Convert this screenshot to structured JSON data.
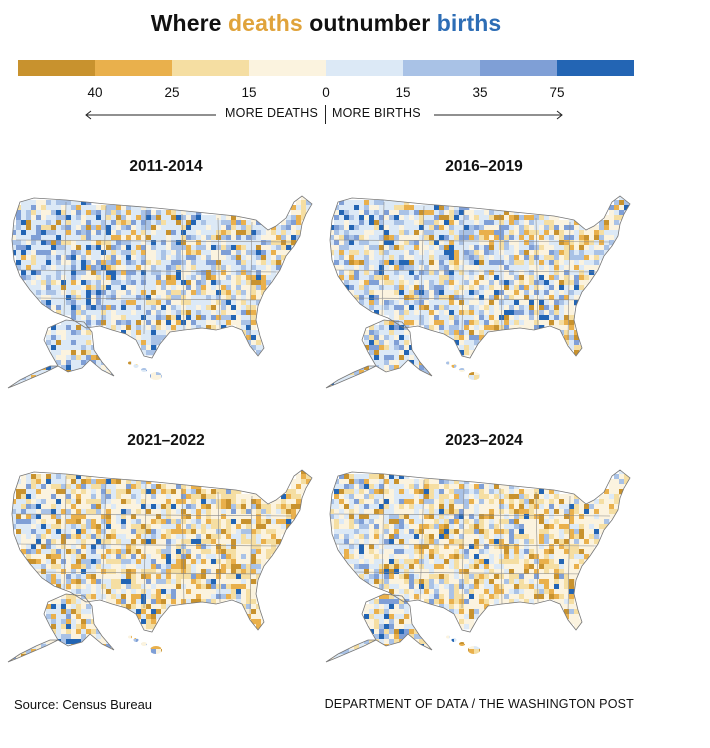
{
  "title": {
    "prefix": "Where ",
    "deaths_word": "deaths",
    "middle": " outnumber ",
    "births_word": "births"
  },
  "colors": {
    "deaths_accent": "#e0a33b",
    "births_accent": "#2d6db5",
    "scale": [
      "#c8922e",
      "#e9b04c",
      "#f5dea2",
      "#fbf3df",
      "#dce9f6",
      "#a9c2e6",
      "#7f9fd6",
      "#2365b4"
    ]
  },
  "legend": {
    "ticks": [
      "40",
      "25",
      "15",
      "0",
      "15",
      "35",
      "75"
    ],
    "more_deaths": "MORE DEATHS",
    "more_births": "MORE BIRTHS"
  },
  "panels": [
    {
      "title": "2011-2014",
      "births_share": 0.72
    },
    {
      "title": "2016–2019",
      "births_share": 0.6
    },
    {
      "title": "2021–2022",
      "births_share": 0.28
    },
    {
      "title": "2023–2024",
      "births_share": 0.3
    }
  ],
  "footer": {
    "source": "Source: Census Bureau",
    "credit": "DEPARTMENT OF DATA / THE WASHINGTON POST"
  }
}
